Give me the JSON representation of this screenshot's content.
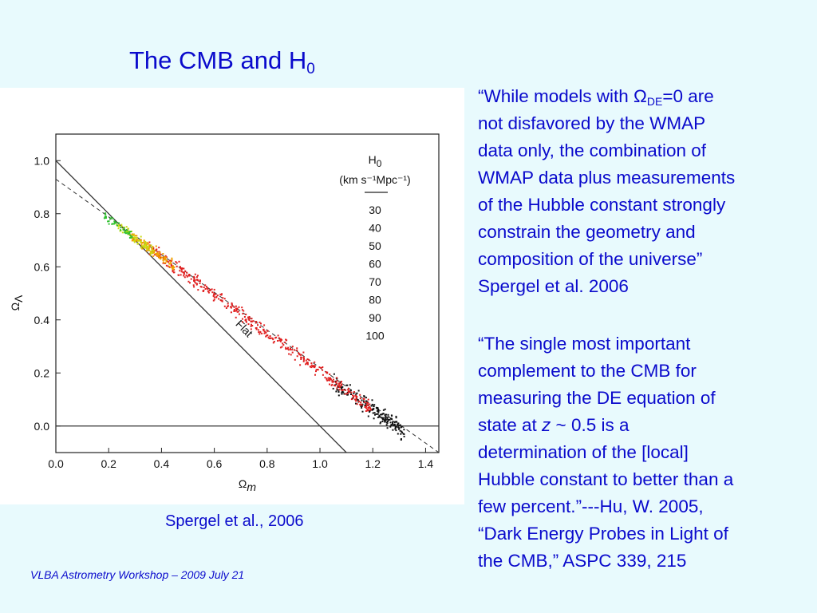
{
  "slide": {
    "title_text": "The CMB and H",
    "title_subscript": "0",
    "caption": "Spergel et al., 2006",
    "footer": "VLBA Astrometry Workshop – 2009 July 21"
  },
  "quote1": {
    "lines": [
      [
        "“While models with Ω",
        "DE",
        "=0 are"
      ],
      [
        "not disfavored by the WMAP"
      ],
      [
        "data only, the combination of"
      ],
      [
        "WMAP data plus measurements"
      ],
      [
        "of the Hubble constant strongly"
      ],
      [
        "constrain the geometry and"
      ],
      [
        "composition of the universe”"
      ],
      [
        "Spergel et al. 2006"
      ]
    ]
  },
  "quote2": {
    "lines": [
      [
        "“The single most important"
      ],
      [
        "complement to the CMB for"
      ],
      [
        "measuring the DE equation of"
      ],
      [
        "state at ",
        "z",
        " ~ 0.5 is a"
      ],
      [
        "determination of the [local]"
      ],
      [
        "Hubble constant to better than a"
      ],
      [
        "few percent.”---Hu, W.  2005,"
      ],
      [
        "“Dark Energy Probes in Light of"
      ],
      [
        "the CMB,” ASPC 339, 215"
      ]
    ]
  },
  "chart_data": {
    "type": "scatter",
    "xlabel": "Ωm",
    "ylabel": "ΩΛ",
    "xlim": [
      0.0,
      1.45
    ],
    "ylim": [
      -0.1,
      1.1
    ],
    "x_ticks": [
      0.0,
      0.2,
      0.4,
      0.6,
      0.8,
      1.0,
      1.2,
      1.4
    ],
    "y_ticks": [
      0.0,
      0.2,
      0.4,
      0.6,
      0.8,
      1.0
    ],
    "grid": false,
    "lines": [
      {
        "label": "Flat",
        "style": "solid",
        "points": [
          [
            0.0,
            1.0
          ],
          [
            1.1,
            -0.1
          ]
        ]
      },
      {
        "label": "",
        "style": "dashed",
        "points": [
          [
            0.0,
            0.93
          ],
          [
            1.45,
            -0.1
          ]
        ]
      },
      {
        "label": "",
        "style": "solid",
        "points": [
          [
            0.0,
            0.0
          ],
          [
            1.45,
            0.0
          ]
        ]
      }
    ],
    "legend": {
      "title": "H",
      "title_subscript": "0",
      "units": "(km s⁻¹Mpc⁻¹)",
      "placement": "top-right",
      "entries": [
        {
          "label": "30",
          "color": "#111111"
        },
        {
          "label": "40",
          "color": "#e02020"
        },
        {
          "label": "50",
          "color": "#e02020"
        },
        {
          "label": "60",
          "color": "#f0a000"
        },
        {
          "label": "70",
          "color": "#c8dc10"
        },
        {
          "label": "80",
          "color": "#30c030"
        },
        {
          "label": "90",
          "color": "#3080e0"
        },
        {
          "label": "100",
          "color": "#3030e0"
        }
      ]
    },
    "series": [
      {
        "color": "#111111",
        "x_range": [
          1.05,
          1.32
        ],
        "spread": 0.02,
        "count": 190
      },
      {
        "color": "#e02020",
        "x_range": [
          0.35,
          1.2
        ],
        "spread": 0.016,
        "count": 420
      },
      {
        "color": "#f0a000",
        "x_range": [
          0.27,
          0.45
        ],
        "spread": 0.013,
        "count": 110
      },
      {
        "color": "#c8dc10",
        "x_range": [
          0.23,
          0.37
        ],
        "spread": 0.012,
        "count": 70
      },
      {
        "color": "#30c030",
        "x_range": [
          0.18,
          0.29
        ],
        "spread": 0.01,
        "count": 45
      }
    ]
  }
}
